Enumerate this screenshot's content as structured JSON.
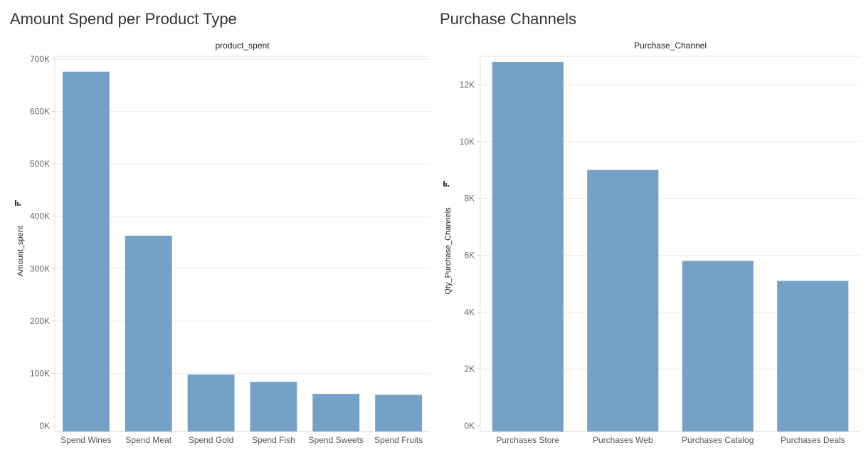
{
  "colors": {
    "bar": "#75a1c7",
    "grid": "#ececec",
    "background": "#ffffff"
  },
  "chart_data": [
    {
      "type": "bar",
      "title": "Amount Spend per Product Type",
      "column_header": "product_spent",
      "ylabel": "Amount_spent",
      "xlabel": "",
      "categories": [
        "Spend Wines",
        "Spend Meat",
        "Spend Gold",
        "Spend Fish",
        "Spend Sweets",
        "Spend Fruits"
      ],
      "values": [
        676000,
        363000,
        98000,
        84000,
        61000,
        59000
      ],
      "ylim": [
        0,
        700000
      ],
      "yticks": [
        0,
        100000,
        200000,
        300000,
        400000,
        500000,
        600000,
        700000
      ],
      "ytick_labels": [
        "0K",
        "100K",
        "200K",
        "300K",
        "400K",
        "500K",
        "600K",
        "700K"
      ],
      "grid": true,
      "sort_icon": "sort-descending-icon"
    },
    {
      "type": "bar",
      "title": "Purchase Channels",
      "column_header": "Purchase_Channel",
      "ylabel": "Qty_Purchase_Channels",
      "xlabel": "",
      "categories": [
        "Purchases Store",
        "Purchases Web",
        "Purchases Catalog",
        "Purchases Deals"
      ],
      "values": [
        12800,
        9000,
        5800,
        5100
      ],
      "ylim": [
        0,
        13000
      ],
      "yticks": [
        0,
        2000,
        4000,
        6000,
        8000,
        10000,
        12000
      ],
      "ytick_labels": [
        "0K",
        "2K",
        "4K",
        "6K",
        "8K",
        "10K",
        "12K"
      ],
      "grid": true,
      "sort_icon": "sort-descending-icon"
    }
  ]
}
